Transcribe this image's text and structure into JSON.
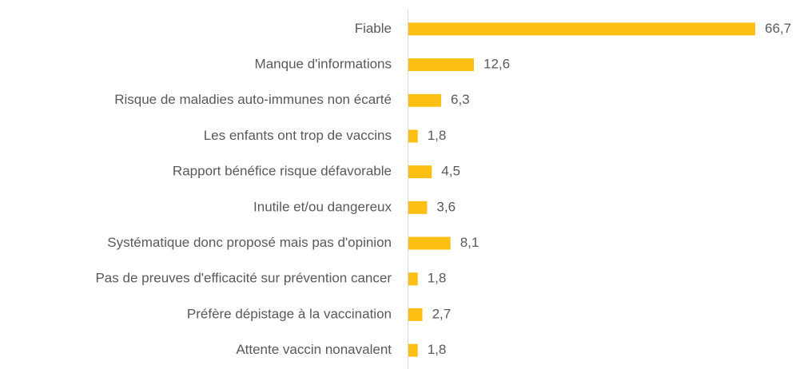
{
  "chart_data": {
    "type": "bar",
    "orientation": "horizontal",
    "categories": [
      "Fiable",
      "Manque d'informations",
      "Risque de maladies auto-immunes non écarté",
      "Les enfants ont trop de vaccins",
      "Rapport bénéfice risque défavorable",
      "Inutile et/ou dangereux",
      "Systématique donc proposé mais pas d'opinion",
      "Pas de preuves d'efficacité sur prévention cancer",
      "Préfère dépistage à la vaccination",
      "Attente vaccin nonavalent"
    ],
    "values": [
      66.7,
      12.6,
      6.3,
      1.8,
      4.5,
      3.6,
      8.1,
      1.8,
      2.7,
      1.8
    ],
    "value_labels": [
      "66,7",
      "12,6",
      "6,3",
      "1,8",
      "4,5",
      "3,6",
      "8,1",
      "1,8",
      "2,7",
      "1,8"
    ],
    "color": "#fcc015"
  }
}
